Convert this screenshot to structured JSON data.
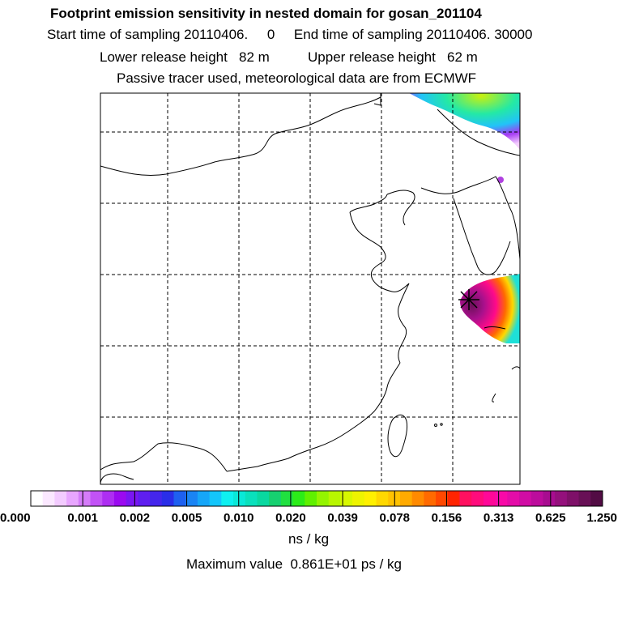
{
  "header": {
    "title": "Footprint emission sensitivity in nested domain for gosan_201104",
    "line2": "Start time of sampling 20110406.     0     End time of sampling 20110406. 30000",
    "line3": "Lower release height   82 m          Upper release height   62 m",
    "line4": "Passive tracer used, meteorological data are from ECMWF"
  },
  "colorbar": {
    "ticks": [
      "0.000",
      "0.001",
      "0.002",
      "0.005",
      "0.010",
      "0.020",
      "0.039",
      "0.078",
      "0.156",
      "0.313",
      "0.625",
      "1.250"
    ],
    "colors": [
      "#ffffff",
      "#fbe8ff",
      "#f3cbff",
      "#e8a6ff",
      "#d57cf9",
      "#c252f6",
      "#ae2ef2",
      "#9b0af0",
      "#7a16f2",
      "#5f1ef0",
      "#4426ec",
      "#2a2ee8",
      "#1e60f0",
      "#1a84f4",
      "#16a6f8",
      "#14c6fb",
      "#0ef0f0",
      "#0ae8d8",
      "#0ae0bc",
      "#0ad8a0",
      "#16d070",
      "#20e040",
      "#2cec18",
      "#60f000",
      "#94f400",
      "#b8f600",
      "#d8f800",
      "#eef400",
      "#fff000",
      "#ffd800",
      "#ffc200",
      "#ffaa00",
      "#ff8a00",
      "#ff6a00",
      "#ff4800",
      "#ff2400",
      "#ff1060",
      "#ff0c7c",
      "#ff0898",
      "#f80aa8",
      "#e40ca8",
      "#d00ca4",
      "#bc0c9c",
      "#a80c90",
      "#94107c",
      "#7e1068",
      "#681056",
      "#520c44"
    ],
    "units": "ns / kg"
  },
  "footer": {
    "max_value": "Maximum value  0.861E+01 ps / kg"
  }
}
